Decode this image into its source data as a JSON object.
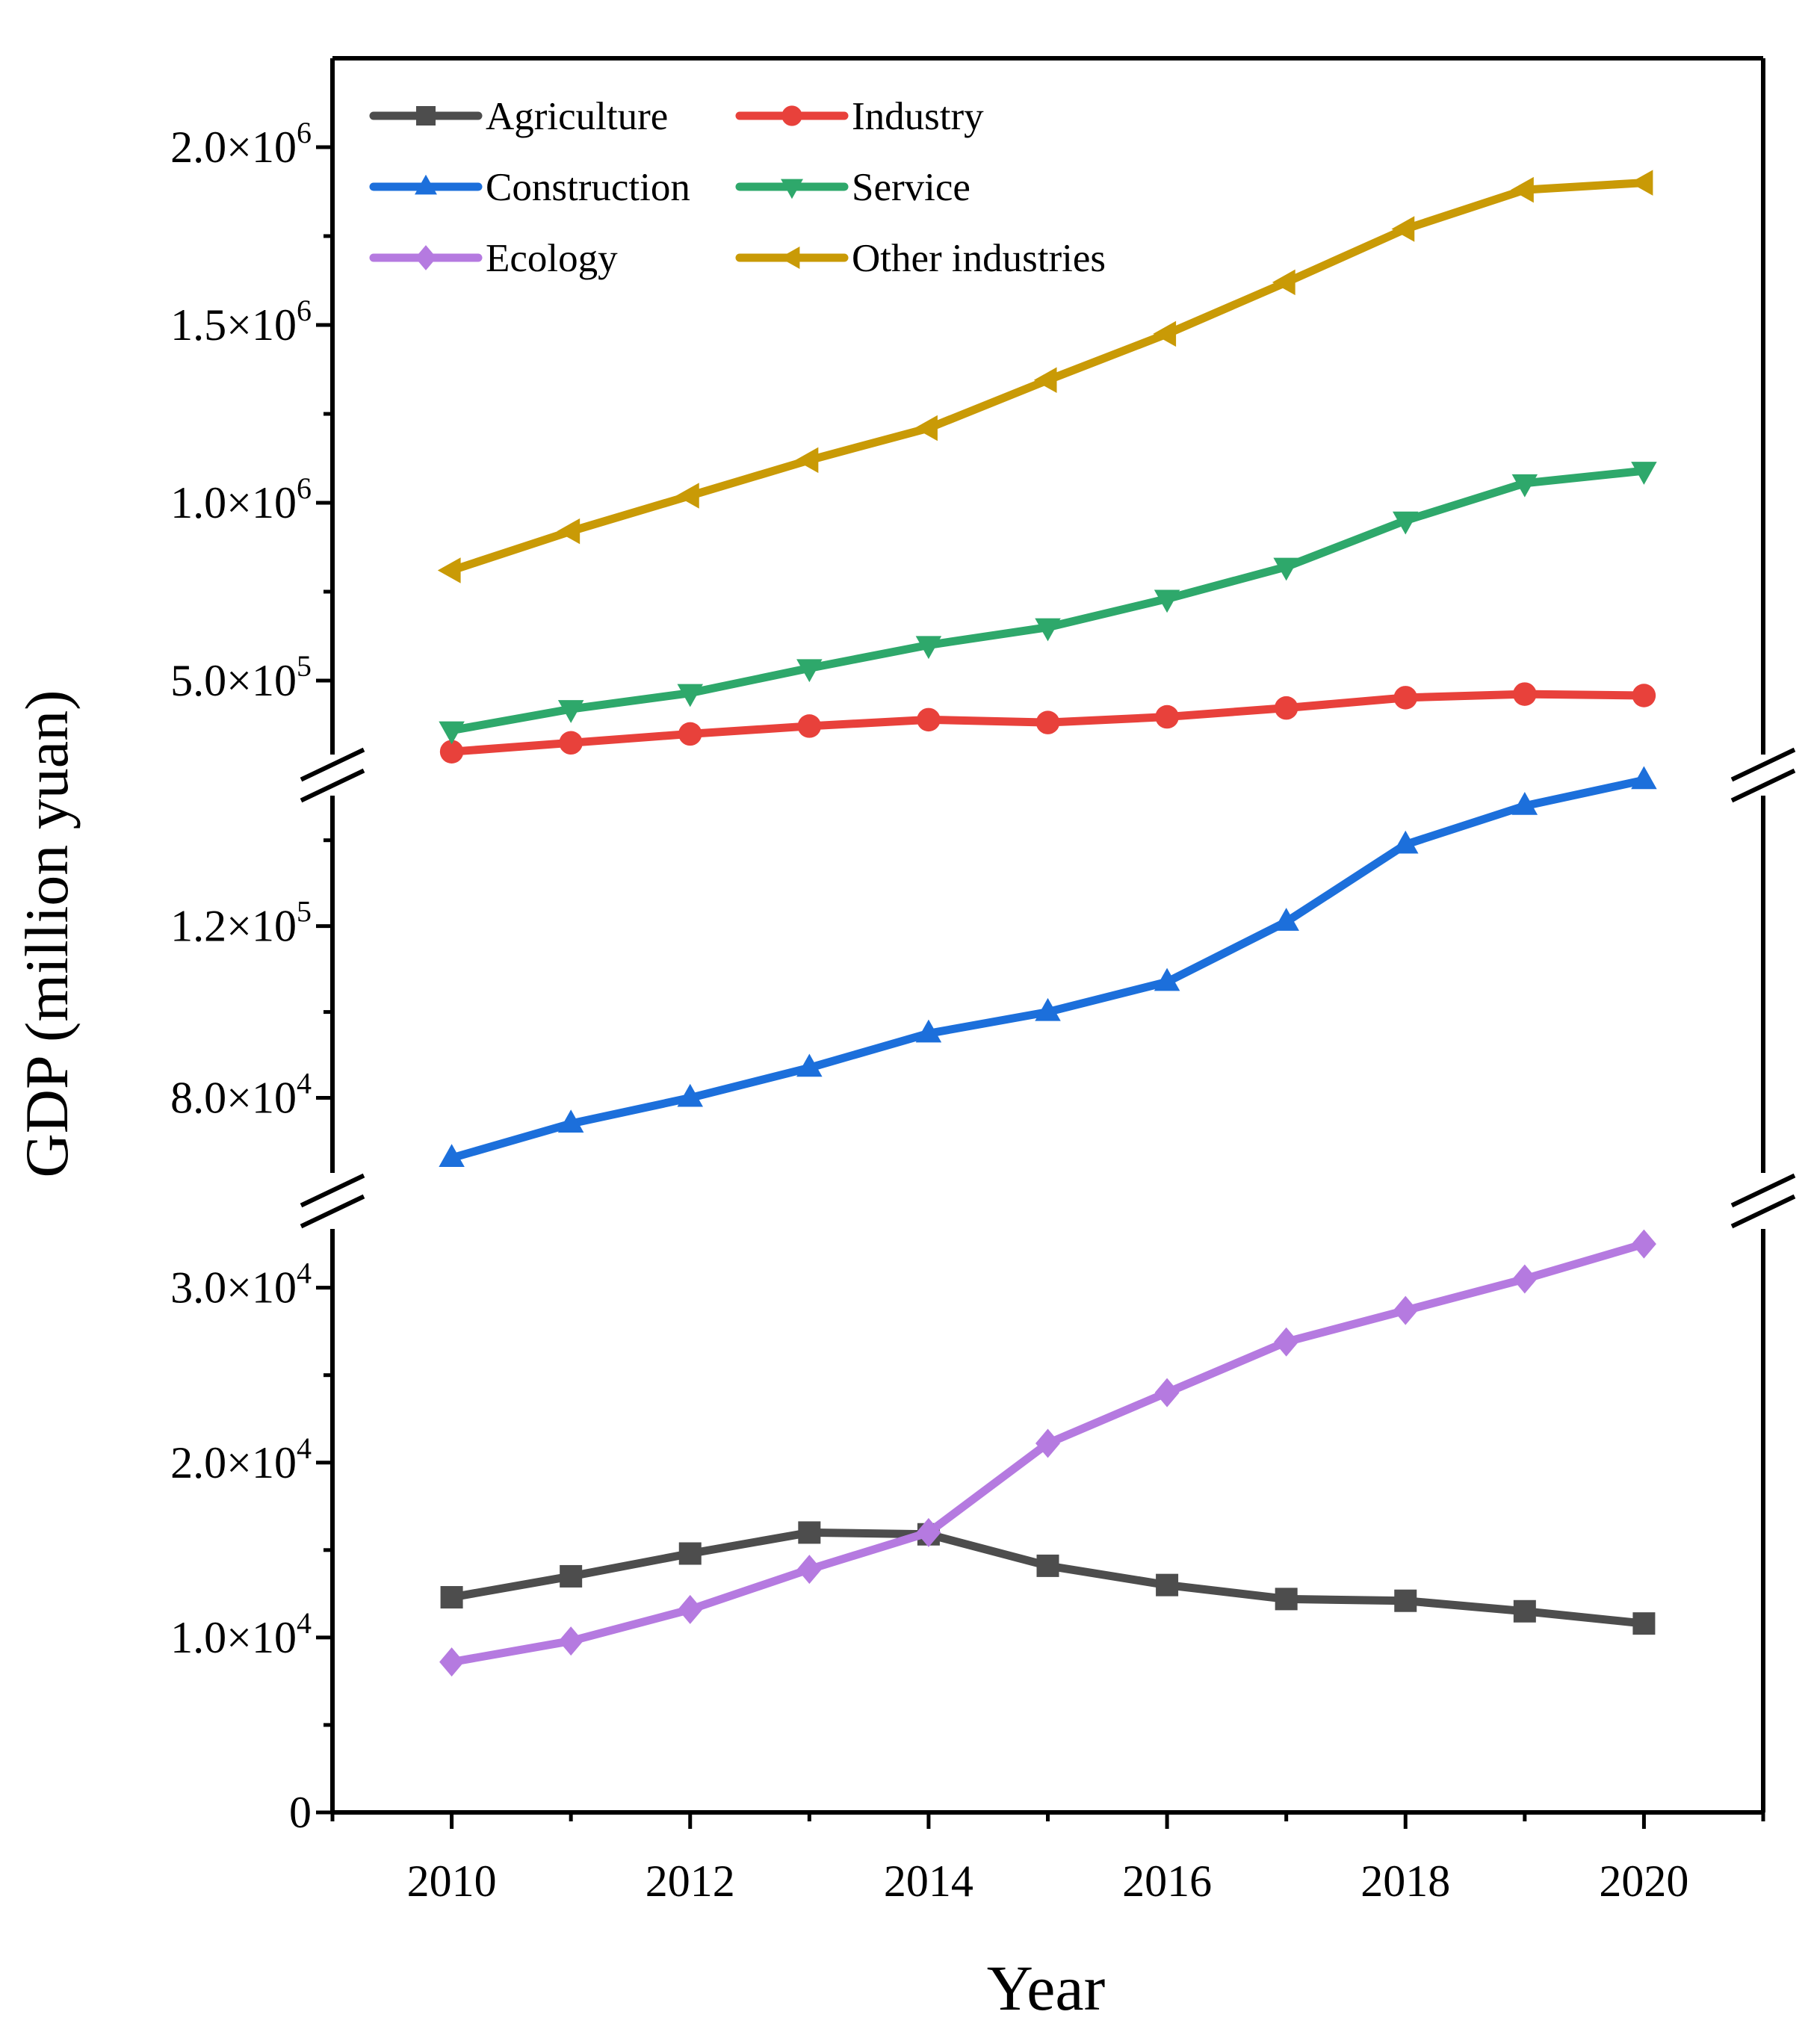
{
  "chart_data": {
    "type": "line",
    "title": "",
    "xlabel": "Year",
    "ylabel": "GDP (million yuan)",
    "x": [
      2010,
      2011,
      2012,
      2013,
      2014,
      2015,
      2016,
      2017,
      2018,
      2019,
      2020
    ],
    "xlim": [
      2009,
      2021
    ],
    "x_ticks": [
      2010,
      2012,
      2014,
      2016,
      2018,
      2020
    ],
    "x_tick_labels": [
      "2010",
      "2012",
      "2014",
      "2016",
      "2018",
      "2020"
    ],
    "y_broken": true,
    "y_segments": [
      {
        "name": "lower",
        "ylim": [
          0,
          34000
        ],
        "ticks": [
          0,
          10000,
          20000,
          30000
        ],
        "tick_labels": [
          {
            "mantissa": "0",
            "exp": ""
          },
          {
            "mantissa": "1.0×10",
            "exp": "4"
          },
          {
            "mantissa": "2.0×10",
            "exp": "4"
          },
          {
            "mantissa": "3.0×10",
            "exp": "4"
          }
        ],
        "minor_ticks": [
          5000,
          15000,
          25000
        ]
      },
      {
        "name": "middle",
        "ylim": [
          66000,
          153000
        ],
        "ticks": [
          80000,
          120000
        ],
        "tick_labels": [
          {
            "mantissa": "8.0×10",
            "exp": "4"
          },
          {
            "mantissa": "1.2×10",
            "exp": "5"
          }
        ],
        "minor_ticks": [
          100000,
          140000
        ]
      },
      {
        "name": "upper",
        "ylim": [
          250000,
          2250000
        ],
        "ticks": [
          500000,
          1000000,
          1500000,
          2000000
        ],
        "tick_labels": [
          {
            "mantissa": "5.0×10",
            "exp": "5"
          },
          {
            "mantissa": "1.0×10",
            "exp": "6"
          },
          {
            "mantissa": "1.5×10",
            "exp": "6"
          },
          {
            "mantissa": "2.0×10",
            "exp": "6"
          }
        ],
        "minor_ticks": [
          750000,
          1250000,
          1750000
        ]
      }
    ],
    "series": [
      {
        "name": "Agriculture",
        "color": "#4d4d4d",
        "marker": "square",
        "segment": "lower",
        "values": [
          12300,
          13500,
          14800,
          16000,
          15900,
          14100,
          13000,
          12200,
          12100,
          11500,
          10800
        ]
      },
      {
        "name": "Industry",
        "color": "#e8413b",
        "marker": "circle",
        "segment": "upper",
        "values": [
          300000,
          325000,
          350000,
          372000,
          390000,
          382000,
          398000,
          423000,
          452000,
          462000,
          458000
        ]
      },
      {
        "name": "Construction",
        "color": "#1c6fdb",
        "marker": "triangle-up",
        "segment": "middle",
        "values": [
          66000,
          74000,
          80000,
          87000,
          95000,
          100000,
          107000,
          121000,
          139000,
          148000,
          154000
        ]
      },
      {
        "name": "Service",
        "color": "#2ea86b",
        "marker": "triangle-down",
        "segment": "upper",
        "values": [
          360000,
          420000,
          465000,
          535000,
          600000,
          650000,
          730000,
          820000,
          950000,
          1055000,
          1090000
        ]
      },
      {
        "name": "Ecology",
        "color": "#b57ae0",
        "marker": "diamond",
        "segment": "lower",
        "values": [
          8600,
          9800,
          11600,
          13900,
          16000,
          21100,
          24000,
          26900,
          28700,
          30500,
          32500
        ]
      },
      {
        "name": "Other industries",
        "color": "#c99a06",
        "marker": "triangle-left",
        "segment": "upper",
        "values": [
          810000,
          920000,
          1020000,
          1120000,
          1210000,
          1345000,
          1475000,
          1620000,
          1770000,
          1880000,
          1900000
        ]
      }
    ],
    "legend": {
      "placement": "top-left",
      "columns": 2,
      "entries": [
        "Agriculture",
        "Industry",
        "Construction",
        "Service",
        "Ecology",
        "Other industries"
      ]
    }
  }
}
